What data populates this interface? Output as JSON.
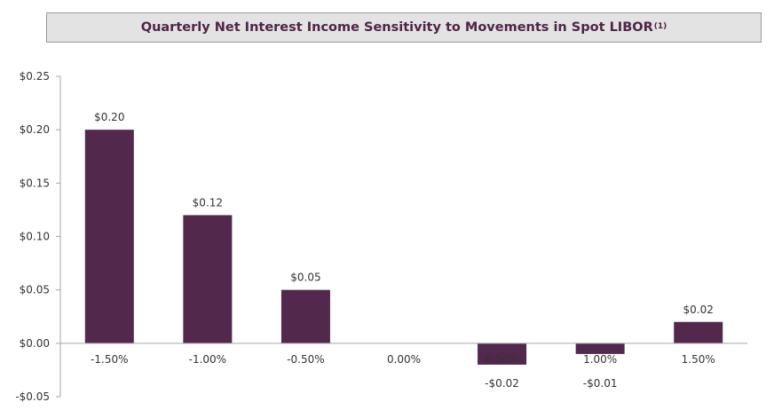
{
  "title": "Quarterly Net Interest Income Sensitivity to Movements in Spot LIBOR",
  "title_footnote": "(1)",
  "chart_data": {
    "type": "bar",
    "categories": [
      "-1.50%",
      "-1.00%",
      "-0.50%",
      "0.00%",
      "0.50%",
      "1.00%",
      "1.50%"
    ],
    "values": [
      0.2,
      0.12,
      0.05,
      0.0,
      -0.02,
      -0.01,
      0.02
    ],
    "data_labels": [
      "$0.20",
      "$0.12",
      "$0.05",
      "",
      "-$0.02",
      "-$0.01",
      "$0.02"
    ],
    "y_ticks": [
      0.25,
      0.2,
      0.15,
      0.1,
      0.05,
      0.0,
      -0.05
    ],
    "y_tick_labels": [
      "$0.25",
      "$0.20",
      "$0.15",
      "$0.10",
      "$0.05",
      "$0.00",
      "-$0.05"
    ],
    "ylim": [
      -0.05,
      0.25
    ],
    "grid": false,
    "bar_color": "#52284c",
    "inside_label_color": "#ffffff"
  }
}
